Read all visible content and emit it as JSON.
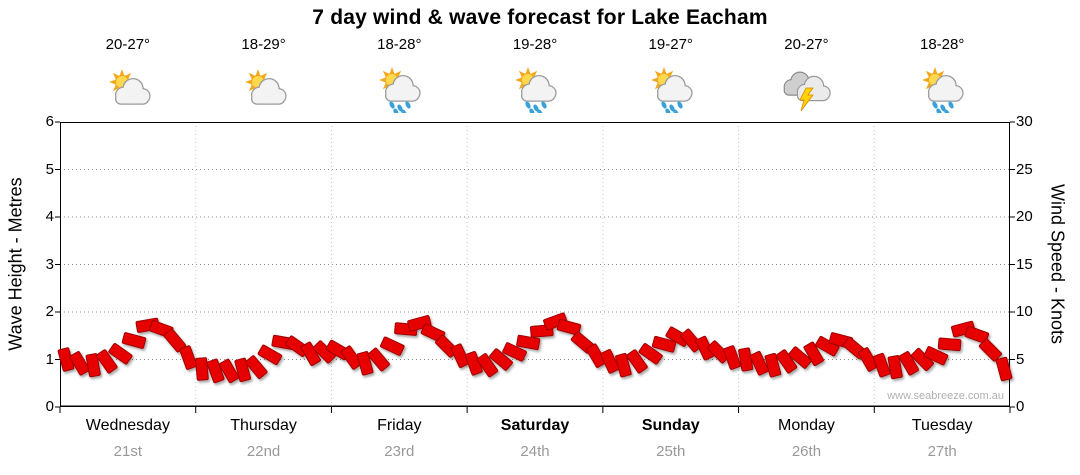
{
  "title": "7 day wind & wave forecast for Lake Eacham",
  "watermark": "www.seabreeze.com.au",
  "axes": {
    "left_label": "Wave Height - Metres",
    "right_label": "Wind Speed - Knots",
    "wave_ticks": [
      0,
      1,
      2,
      3,
      4,
      5,
      6
    ],
    "wind_ticks": [
      0,
      5,
      10,
      15,
      20,
      25,
      30
    ]
  },
  "days": [
    {
      "name": "Wednesday",
      "date": "21st",
      "temp": "20-27°",
      "icon": "sun-cloud",
      "weekend": false
    },
    {
      "name": "Thursday",
      "date": "22nd",
      "temp": "18-29°",
      "icon": "sun-cloud",
      "weekend": false
    },
    {
      "name": "Friday",
      "date": "23rd",
      "temp": "18-28°",
      "icon": "sun-cloud-rain",
      "weekend": false
    },
    {
      "name": "Saturday",
      "date": "24th",
      "temp": "19-28°",
      "icon": "sun-cloud-rain",
      "weekend": true
    },
    {
      "name": "Sunday",
      "date": "25th",
      "temp": "19-27°",
      "icon": "sun-cloud-rain",
      "weekend": true
    },
    {
      "name": "Monday",
      "date": "26th",
      "temp": "20-27°",
      "icon": "storm",
      "weekend": false
    },
    {
      "name": "Tuesday",
      "date": "27th",
      "temp": "18-28°",
      "icon": "sun-cloud-rain",
      "weekend": false
    }
  ],
  "chart_data": {
    "type": "wind-barb-series",
    "title": "7 day wind & wave forecast for Lake Eacham",
    "x_unit": "time across 7 days (10 samples per day)",
    "wave_ylim": [
      0,
      6
    ],
    "wind_ylim": [
      0,
      30
    ],
    "grid": "dotted horizontal lines each metre, dotted vertical lines at day boundaries",
    "wind_knots": [
      5.0,
      4.6,
      4.4,
      4.8,
      5.6,
      7.0,
      8.6,
      8.2,
      7.0,
      5.2,
      4.0,
      3.8,
      3.8,
      3.9,
      4.2,
      5.5,
      6.8,
      6.4,
      5.6,
      5.8,
      6.0,
      5.2,
      4.6,
      5.0,
      6.4,
      8.2,
      8.8,
      7.8,
      6.4,
      5.4,
      4.6,
      4.4,
      5.0,
      5.8,
      6.8,
      8.0,
      9.0,
      8.4,
      6.8,
      5.4,
      4.8,
      4.4,
      4.8,
      5.6,
      6.6,
      7.4,
      7.0,
      6.2,
      5.8,
      5.2,
      5.0,
      4.6,
      4.4,
      4.8,
      5.2,
      5.6,
      6.4,
      7.0,
      6.2,
      5.0,
      4.4,
      4.2,
      4.6,
      5.0,
      5.4,
      6.6,
      8.2,
      7.6,
      6.0,
      4.0
    ],
    "barb_dirs_deg": [
      75,
      60,
      80,
      55,
      35,
      15,
      -10,
      20,
      50,
      70,
      85,
      70,
      60,
      75,
      50,
      30,
      10,
      35,
      60,
      45,
      30,
      55,
      75,
      50,
      25,
      5,
      -15,
      25,
      45,
      65,
      70,
      55,
      40,
      25,
      10,
      -5,
      -20,
      15,
      40,
      60,
      65,
      75,
      55,
      35,
      15,
      30,
      50,
      65,
      45,
      70,
      80,
      65,
      75,
      55,
      40,
      60,
      30,
      15,
      40,
      60,
      70,
      80,
      60,
      45,
      25,
      5,
      -15,
      20,
      45,
      75
    ],
    "barb_color": "#e60000",
    "barb_outline": "#a00000"
  }
}
